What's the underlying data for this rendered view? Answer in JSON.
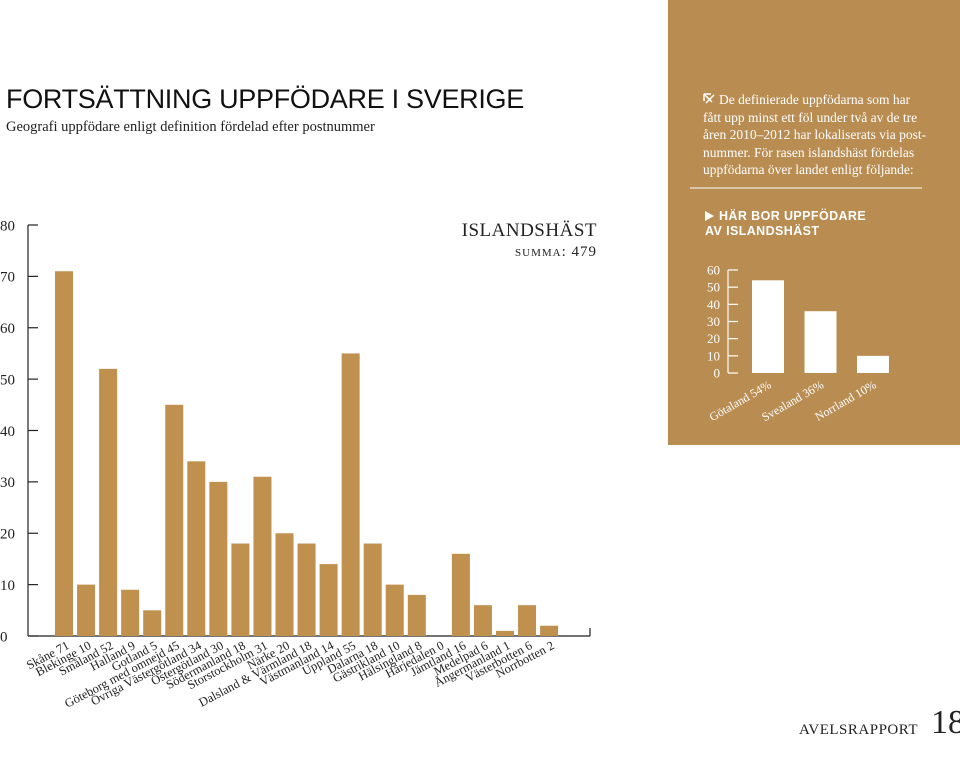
{
  "header": {
    "title": "FORTSÄTTNING UPPFÖDARE I SVERIGE",
    "subtitle": "Geografi uppfödare enligt definition fördelad efter postnummer"
  },
  "sidebar": {
    "lines": [
      "De definierade uppfödarna som har",
      "fått upp minst ett föl under två av de tre",
      "åren 2010–2012 har lokaliserats via post-",
      "nummer. För rasen islandshäst fördelas",
      "uppfödarna över landet enligt följande:"
    ]
  },
  "chart_data": [
    {
      "type": "bar",
      "title": "ISLANDSHÄST",
      "subtitle": "summa: 479",
      "categories": [
        "Skåne",
        "Blekinge",
        "Småland",
        "Halland",
        "Gotland",
        "Göteborg med omnejd",
        "Övriga Västergötland",
        "Östergötland",
        "Södermanland",
        "Storstockholm",
        "Närke",
        "Dalsland & Värmland",
        "Västmanland",
        "Uppland",
        "Dalarna",
        "Gästrikland",
        "Hälsingland",
        "Härjedalen",
        "Jämtland",
        "Medelpad",
        "Ångermanland",
        "Västerbotten",
        "Norrbotten"
      ],
      "values": [
        71,
        10,
        52,
        9,
        5,
        45,
        34,
        30,
        18,
        31,
        20,
        18,
        14,
        55,
        18,
        10,
        8,
        0,
        16,
        6,
        1,
        6,
        2
      ],
      "color": "#c0904f",
      "ylim": [
        0,
        80
      ],
      "yticks": [
        0,
        10,
        20,
        30,
        40,
        50,
        60,
        70,
        80
      ]
    },
    {
      "type": "bar",
      "title": "HÄR BOR UPPFÖDARE AV ISLANDSHÄST",
      "categories": [
        "Götaland",
        "Svealand",
        "Norrland"
      ],
      "values": [
        54,
        36,
        10
      ],
      "value_labels": [
        "54%",
        "36%",
        "10%"
      ],
      "color": "#ffffff",
      "ylim": [
        0,
        60
      ],
      "yticks": [
        0,
        10,
        20,
        30,
        40,
        50,
        60
      ]
    }
  ],
  "footer": {
    "publication": "AVELSRAPPORT",
    "page": "18"
  }
}
